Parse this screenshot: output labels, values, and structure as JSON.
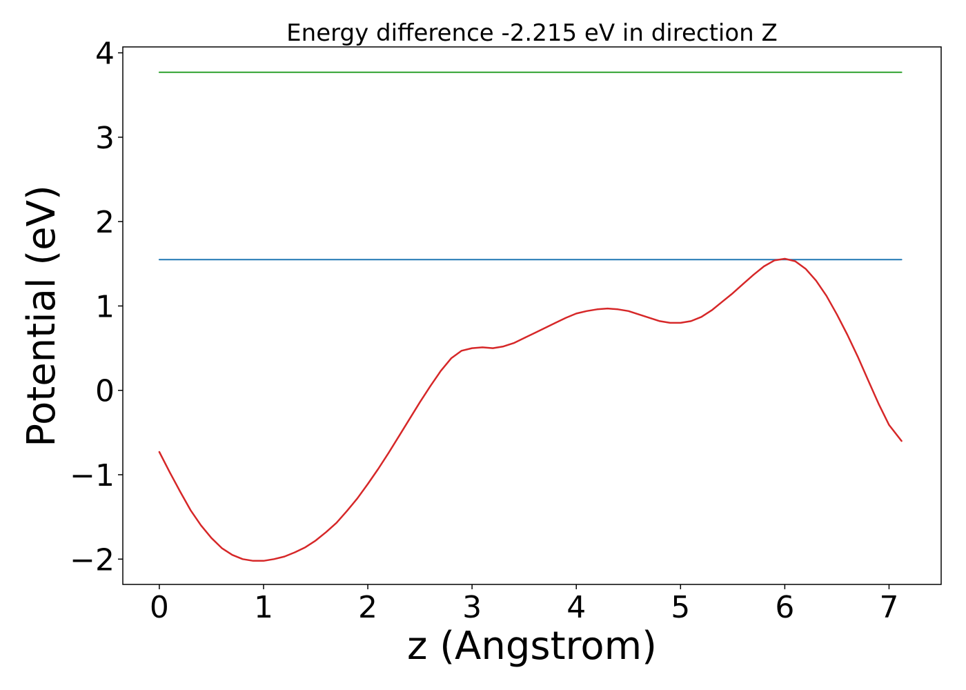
{
  "chart_data": {
    "type": "line",
    "title": "Energy difference -2.215 eV in direction Z",
    "xlabel": "z (Angstrom)",
    "ylabel": "Potential (eV)",
    "xlim": [
      -0.35,
      7.5
    ],
    "ylim": [
      -2.3,
      4.07
    ],
    "xticks": [
      0,
      1,
      2,
      3,
      4,
      5,
      6,
      7
    ],
    "yticks": [
      -2,
      -1,
      0,
      1,
      2,
      3,
      4
    ],
    "xtick_labels": [
      "0",
      "1",
      "2",
      "3",
      "4",
      "5",
      "6",
      "7"
    ],
    "ytick_labels": [
      "−2",
      "−1",
      "0",
      "1",
      "2",
      "3",
      "4"
    ],
    "grid": false,
    "series": [
      {
        "color": "#2ca02c",
        "x": [
          0,
          7.12
        ],
        "y": [
          3.77,
          3.77
        ]
      },
      {
        "color": "#1f77b4",
        "x": [
          0,
          7.12
        ],
        "y": [
          1.55,
          1.55
        ]
      },
      {
        "color": "#d62728",
        "x": [
          0,
          0.1,
          0.2,
          0.3,
          0.4,
          0.5,
          0.6,
          0.7,
          0.8,
          0.9,
          1.0,
          1.1,
          1.2,
          1.3,
          1.4,
          1.5,
          1.6,
          1.7,
          1.8,
          1.9,
          2.0,
          2.1,
          2.2,
          2.3,
          2.4,
          2.5,
          2.6,
          2.7,
          2.8,
          2.9,
          3.0,
          3.1,
          3.2,
          3.3,
          3.4,
          3.5,
          3.6,
          3.7,
          3.8,
          3.9,
          4.0,
          4.1,
          4.2,
          4.3,
          4.4,
          4.5,
          4.6,
          4.7,
          4.8,
          4.9,
          5.0,
          5.1,
          5.2,
          5.3,
          5.4,
          5.5,
          5.6,
          5.7,
          5.8,
          5.9,
          6.0,
          6.1,
          6.2,
          6.3,
          6.4,
          6.5,
          6.6,
          6.7,
          6.8,
          6.9,
          7.0,
          7.12
        ],
        "y": [
          -0.73,
          -0.97,
          -1.2,
          -1.42,
          -1.6,
          -1.75,
          -1.87,
          -1.95,
          -2.0,
          -2.02,
          -2.02,
          -2.0,
          -1.97,
          -1.92,
          -1.86,
          -1.78,
          -1.68,
          -1.57,
          -1.43,
          -1.28,
          -1.11,
          -0.93,
          -0.74,
          -0.54,
          -0.34,
          -0.14,
          0.05,
          0.23,
          0.38,
          0.47,
          0.5,
          0.51,
          0.5,
          0.52,
          0.56,
          0.62,
          0.68,
          0.74,
          0.8,
          0.86,
          0.91,
          0.94,
          0.96,
          0.97,
          0.96,
          0.94,
          0.9,
          0.86,
          0.82,
          0.8,
          0.8,
          0.82,
          0.87,
          0.95,
          1.05,
          1.15,
          1.26,
          1.37,
          1.47,
          1.54,
          1.56,
          1.53,
          1.44,
          1.3,
          1.12,
          0.9,
          0.66,
          0.4,
          0.12,
          -0.16,
          -0.41,
          -0.6
        ]
      }
    ]
  }
}
